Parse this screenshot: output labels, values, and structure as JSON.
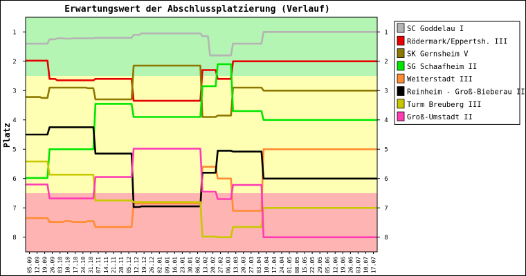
{
  "chart_data": {
    "type": "line",
    "title": "Erwartungswert der Abschlussplatzierung (Verlauf)",
    "ylabel": "Platz",
    "xlabel": "",
    "ylim": [
      8.5,
      0.5
    ],
    "yticks": [
      "1",
      "2",
      "3",
      "4",
      "5",
      "6",
      "7",
      "8"
    ],
    "legend_position": "right",
    "grid": false,
    "zones": [
      {
        "from": 0.5,
        "to": 2.5,
        "color": "#b4f5b4"
      },
      {
        "from": 2.5,
        "to": 6.5,
        "color": "#ffffb4"
      },
      {
        "from": 6.5,
        "to": 8.5,
        "color": "#ffb4b4"
      }
    ],
    "x": [
      "05.09",
      "12.09",
      "19.09",
      "26.09",
      "03.10",
      "10.10",
      "17.10",
      "24.10",
      "31.10",
      "07.11",
      "14.11",
      "21.11",
      "28.11",
      "05.12",
      "12.12",
      "19.12",
      "26.12",
      "02.01",
      "09.01",
      "16.01",
      "23.01",
      "30.01",
      "06.02",
      "13.02",
      "20.02",
      "27.02",
      "06.03",
      "13.03",
      "20.03",
      "27.03",
      "03.04",
      "10.04",
      "17.04",
      "24.04",
      "01.05",
      "08.05",
      "15.05",
      "22.05",
      "29.05",
      "05.06",
      "12.06",
      "19.06",
      "26.06",
      "03.07",
      "10.07",
      "17.07"
    ],
    "series": [
      {
        "name": "SC Goddelau I",
        "color": "#b4b4b4",
        "values": [
          1.4,
          1.4,
          1.4,
          1.25,
          1.22,
          1.23,
          1.22,
          1.22,
          1.22,
          1.2,
          1.2,
          1.2,
          1.2,
          1.2,
          1.1,
          1.05,
          1.05,
          1.05,
          1.05,
          1.05,
          1.05,
          1.05,
          1.05,
          1.15,
          1.8,
          1.8,
          1.8,
          1.4,
          1.4,
          1.4,
          1.4,
          1.0,
          1.0,
          1.0,
          1.0,
          1.0,
          1.0,
          1.0,
          1.0,
          1.0,
          1.0,
          1.0,
          1.0,
          1.0,
          1.0,
          1.0
        ]
      },
      {
        "name": "Rödermark/Eppertsh. III",
        "color": "#e60000",
        "values": [
          1.98,
          1.98,
          1.98,
          2.6,
          2.65,
          2.65,
          2.65,
          2.65,
          2.65,
          2.6,
          2.6,
          2.6,
          2.6,
          2.6,
          3.35,
          3.35,
          3.35,
          3.35,
          3.35,
          3.35,
          3.35,
          3.35,
          3.35,
          2.3,
          2.3,
          2.6,
          2.6,
          2.0,
          2.0,
          2.0,
          2.0,
          2.0,
          2.0,
          2.0,
          2.0,
          2.0,
          2.0,
          2.0,
          2.0,
          2.0,
          2.0,
          2.0,
          2.0,
          2.0,
          2.0,
          2.0
        ]
      },
      {
        "name": "SK Gernsheim V",
        "color": "#8c7800",
        "values": [
          3.22,
          3.22,
          3.25,
          2.9,
          2.9,
          2.9,
          2.9,
          2.9,
          2.92,
          3.3,
          3.3,
          3.3,
          3.3,
          3.3,
          2.15,
          2.15,
          2.15,
          2.15,
          2.15,
          2.15,
          2.15,
          2.15,
          2.15,
          3.9,
          3.9,
          3.85,
          3.85,
          2.9,
          2.9,
          2.9,
          2.9,
          3.0,
          3.0,
          3.0,
          3.0,
          3.0,
          3.0,
          3.0,
          3.0,
          3.0,
          3.0,
          3.0,
          3.0,
          3.0,
          3.0,
          3.0
        ]
      },
      {
        "name": "SG Schaafheim II",
        "color": "#00e600",
        "values": [
          5.98,
          5.98,
          5.98,
          5.0,
          5.0,
          5.0,
          5.0,
          5.0,
          5.0,
          3.45,
          3.45,
          3.45,
          3.45,
          3.45,
          3.9,
          3.9,
          3.9,
          3.9,
          3.9,
          3.9,
          3.9,
          3.9,
          3.9,
          2.85,
          2.85,
          2.1,
          2.1,
          3.7,
          3.7,
          3.7,
          3.7,
          4.0,
          4.0,
          4.0,
          4.0,
          4.0,
          4.0,
          4.0,
          4.0,
          4.0,
          4.0,
          4.0,
          4.0,
          4.0,
          4.0,
          4.0
        ]
      },
      {
        "name": "Weiterstadt III",
        "color": "#ff8c32",
        "values": [
          7.35,
          7.35,
          7.35,
          7.48,
          7.48,
          7.45,
          7.48,
          7.48,
          7.45,
          7.65,
          7.65,
          7.65,
          7.65,
          7.65,
          6.85,
          6.85,
          6.85,
          6.85,
          6.85,
          6.85,
          6.85,
          6.85,
          6.85,
          5.6,
          5.6,
          6.0,
          6.0,
          7.1,
          7.1,
          7.1,
          7.1,
          5.0,
          5.0,
          5.0,
          5.0,
          5.0,
          5.0,
          5.0,
          5.0,
          5.0,
          5.0,
          5.0,
          5.0,
          5.0,
          5.0,
          5.0
        ]
      },
      {
        "name": "Reinheim - Groß-Bieberau II",
        "color": "#000000",
        "values": [
          4.5,
          4.5,
          4.5,
          4.25,
          4.25,
          4.25,
          4.25,
          4.25,
          4.25,
          5.15,
          5.15,
          5.15,
          5.15,
          5.15,
          6.97,
          6.95,
          6.95,
          6.95,
          6.95,
          6.95,
          6.95,
          6.95,
          6.95,
          5.8,
          5.8,
          5.05,
          5.05,
          5.08,
          5.08,
          5.08,
          5.08,
          6.0,
          6.0,
          6.0,
          6.0,
          6.0,
          6.0,
          6.0,
          6.0,
          6.0,
          6.0,
          6.0,
          6.0,
          6.0,
          6.0,
          6.0
        ]
      },
      {
        "name": "Turm Breuberg III",
        "color": "#c8c800",
        "values": [
          5.42,
          5.42,
          5.42,
          5.87,
          5.87,
          5.87,
          5.87,
          5.87,
          5.87,
          6.75,
          6.75,
          6.75,
          6.75,
          6.75,
          6.8,
          6.8,
          6.8,
          6.8,
          6.8,
          6.8,
          6.8,
          6.8,
          6.8,
          7.98,
          7.98,
          8.0,
          8.0,
          7.65,
          7.65,
          7.65,
          7.65,
          7.0,
          7.0,
          7.0,
          7.0,
          7.0,
          7.0,
          7.0,
          7.0,
          7.0,
          7.0,
          7.0,
          7.0,
          7.0,
          7.0,
          7.0
        ]
      },
      {
        "name": "Groß-Umstadt II",
        "color": "#ff3cb4",
        "values": [
          6.2,
          6.2,
          6.2,
          6.68,
          6.68,
          6.68,
          6.68,
          6.68,
          6.68,
          5.95,
          5.95,
          5.95,
          5.95,
          5.95,
          4.98,
          4.98,
          4.98,
          4.98,
          4.98,
          4.98,
          4.98,
          4.98,
          4.98,
          6.45,
          6.45,
          6.7,
          6.7,
          6.22,
          6.22,
          6.22,
          6.22,
          8.0,
          8.0,
          8.0,
          8.0,
          8.0,
          8.0,
          8.0,
          8.0,
          8.0,
          8.0,
          8.0,
          8.0,
          8.0,
          8.0,
          8.0
        ]
      }
    ]
  }
}
